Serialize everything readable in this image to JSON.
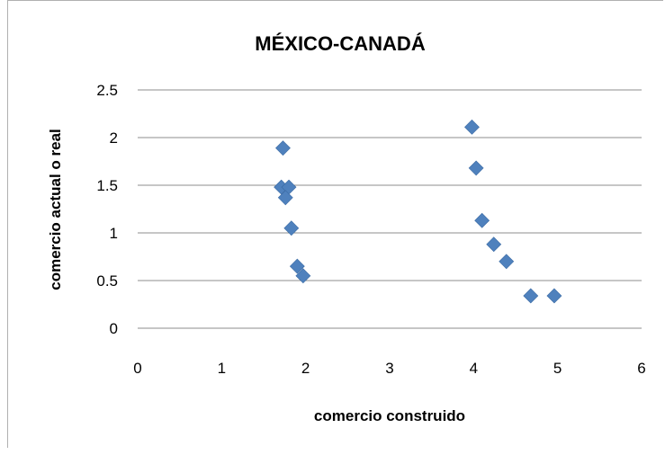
{
  "chart_data": {
    "type": "scatter",
    "title": "MÉXICO-CANADÁ",
    "xlabel": "comercio construido",
    "ylabel": "comercio actual o real",
    "xlim": [
      0,
      6
    ],
    "ylim": [
      0,
      2.5
    ],
    "xticks": [
      "0",
      "1",
      "2",
      "3",
      "4",
      "5",
      "6"
    ],
    "yticks": [
      "0",
      "0.5",
      "1",
      "1.5",
      "2",
      "2.5"
    ],
    "grid": "horizontal",
    "legend": "none",
    "marker": "diamond",
    "color": "#4F81BD",
    "points": [
      {
        "x": 1.73,
        "y": 1.89
      },
      {
        "x": 1.71,
        "y": 1.48
      },
      {
        "x": 1.8,
        "y": 1.48
      },
      {
        "x": 1.76,
        "y": 1.37
      },
      {
        "x": 1.83,
        "y": 1.05
      },
      {
        "x": 1.9,
        "y": 0.65
      },
      {
        "x": 1.97,
        "y": 0.55
      },
      {
        "x": 3.98,
        "y": 2.11
      },
      {
        "x": 4.03,
        "y": 1.68
      },
      {
        "x": 4.1,
        "y": 1.13
      },
      {
        "x": 4.24,
        "y": 0.88
      },
      {
        "x": 4.39,
        "y": 0.7
      },
      {
        "x": 4.68,
        "y": 0.34
      },
      {
        "x": 4.96,
        "y": 0.34
      }
    ]
  }
}
